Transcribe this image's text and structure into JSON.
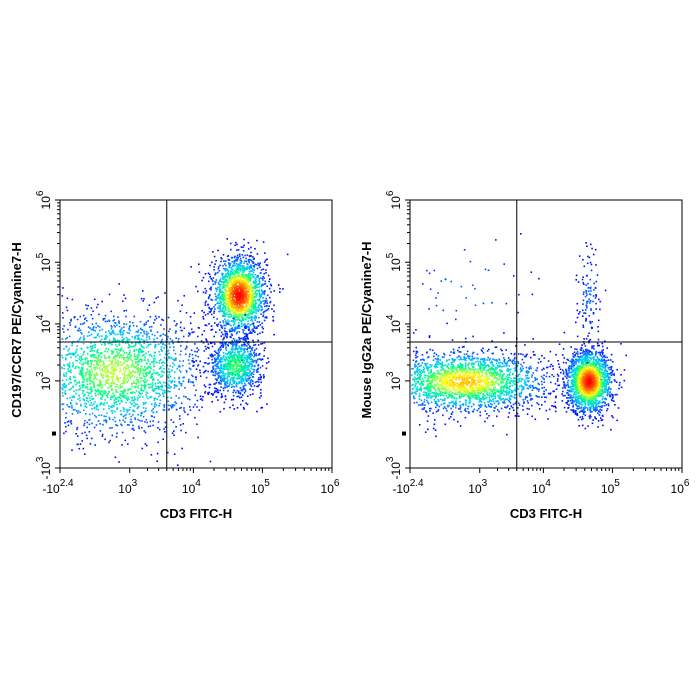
{
  "chart_data": [
    {
      "type": "scatter",
      "subtype": "flow-cytometry-density-dot-plot",
      "title": "",
      "xlabel": "CD3 FITC-H",
      "ylabel": "CD197/CCR7 PE/Cyanine7-H",
      "x_scale": "biexponential",
      "y_scale": "biexponential",
      "xlim": [
        -251,
        1000000
      ],
      "ylim": [
        -1000,
        1000000
      ],
      "x_ticks": [
        {
          "base": "-10",
          "exp": "2.4"
        },
        {
          "base": "10",
          "exp": "3"
        },
        {
          "base": "10",
          "exp": "4"
        },
        {
          "base": "10",
          "exp": "5"
        },
        {
          "base": "10",
          "exp": "6"
        }
      ],
      "y_ticks": [
        {
          "base": "-10",
          "exp": "3"
        },
        {
          "base": "10",
          "exp": "3"
        },
        {
          "base": "10",
          "exp": "4"
        },
        {
          "base": "10",
          "exp": "5"
        },
        {
          "base": "10",
          "exp": "6"
        }
      ],
      "gates": {
        "x": 4000,
        "y": 5000
      },
      "populations": [
        {
          "x_center": 500,
          "y_center": 1500,
          "x_spread": 1.2,
          "y_spread": 0.9,
          "count": 2200,
          "peak": 0.55
        },
        {
          "x_center": 45000,
          "y_center": 30000,
          "x_spread": 0.35,
          "y_spread": 0.55,
          "count": 1800,
          "peak": 1.0
        },
        {
          "x_center": 40000,
          "y_center": 2000,
          "x_spread": 0.35,
          "y_spread": 0.45,
          "count": 900,
          "peak": 0.45
        }
      ],
      "colorscale": [
        "#0000ff",
        "#00c8ff",
        "#00ff80",
        "#ffff00",
        "#ff8000",
        "#ff0000"
      ]
    },
    {
      "type": "scatter",
      "subtype": "flow-cytometry-density-dot-plot",
      "title": "",
      "xlabel": "CD3 FITC-H",
      "ylabel": "Mouse IgG2a PE/Cyanine7-H",
      "x_scale": "biexponential",
      "y_scale": "biexponential",
      "xlim": [
        -251,
        1000000
      ],
      "ylim": [
        -1000,
        1000000
      ],
      "x_ticks": [
        {
          "base": "-10",
          "exp": "2.4"
        },
        {
          "base": "10",
          "exp": "3"
        },
        {
          "base": "10",
          "exp": "4"
        },
        {
          "base": "10",
          "exp": "5"
        },
        {
          "base": "10",
          "exp": "6"
        }
      ],
      "y_ticks": [
        {
          "base": "-10",
          "exp": "3"
        },
        {
          "base": "10",
          "exp": "3"
        },
        {
          "base": "10",
          "exp": "4"
        },
        {
          "base": "10",
          "exp": "5"
        },
        {
          "base": "10",
          "exp": "6"
        }
      ],
      "gates": {
        "x": 4000,
        "y": 5000
      },
      "populations": [
        {
          "x_center": 500,
          "y_center": 1000,
          "x_spread": 1.1,
          "y_spread": 0.45,
          "count": 2200,
          "peak": 0.7
        },
        {
          "x_center": 45000,
          "y_center": 1000,
          "x_spread": 0.3,
          "y_spread": 0.45,
          "count": 1800,
          "peak": 1.0
        },
        {
          "x_center": 500,
          "y_center": 40000,
          "x_spread": 1.0,
          "y_spread": 0.8,
          "count": 40,
          "peak": 0.1
        },
        {
          "x_center": 45000,
          "y_center": 30000,
          "x_spread": 0.15,
          "y_spread": 0.7,
          "count": 110,
          "peak": 0.1
        }
      ],
      "colorscale": [
        "#0000ff",
        "#00c8ff",
        "#00ff80",
        "#ffff00",
        "#ff8000",
        "#ff0000"
      ]
    }
  ]
}
